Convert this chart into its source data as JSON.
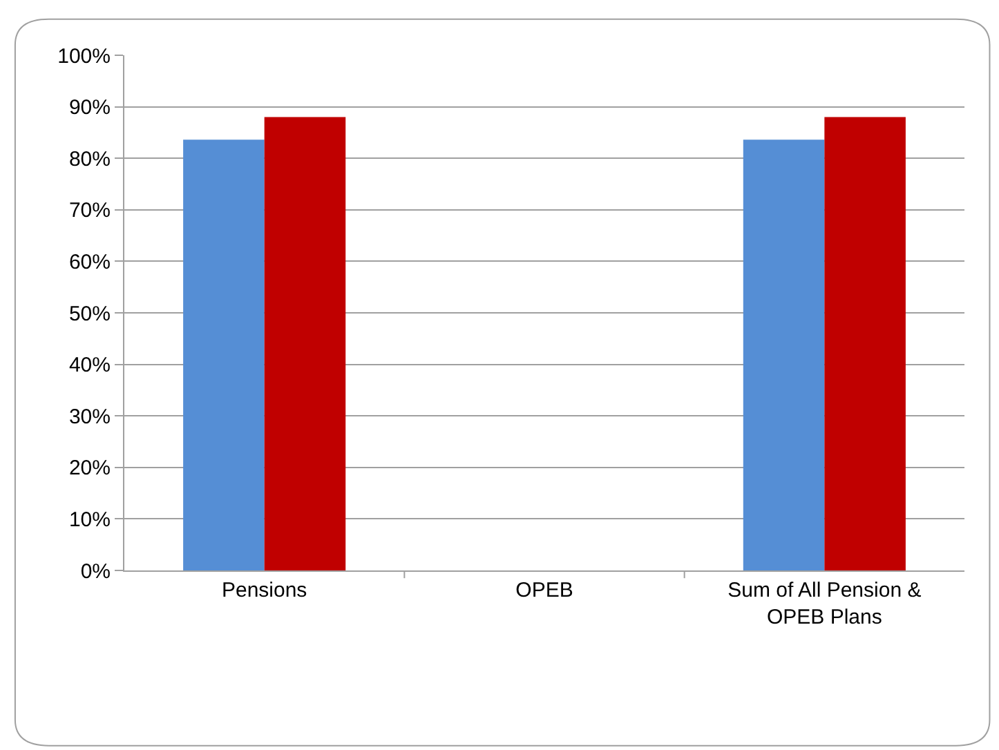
{
  "chart_data": {
    "type": "bar",
    "categories": [
      "Pensions",
      "OPEB",
      "Sum of All Pension & OPEB Plans"
    ],
    "series": [
      {
        "color": "#558ed5",
        "values": [
          83.6,
          null,
          83.6
        ]
      },
      {
        "color": "#c00000",
        "values": [
          88.0,
          null,
          88.0
        ]
      }
    ],
    "ylim": [
      0,
      100
    ],
    "yticks": [
      {
        "value": 0,
        "label": "0%"
      },
      {
        "value": 10,
        "label": "10%"
      },
      {
        "value": 20,
        "label": "20%"
      },
      {
        "value": 30,
        "label": "30%"
      },
      {
        "value": 40,
        "label": "40%"
      },
      {
        "value": 50,
        "label": "50%"
      },
      {
        "value": 60,
        "label": "60%"
      },
      {
        "value": 70,
        "label": "70%"
      },
      {
        "value": 80,
        "label": "80%"
      },
      {
        "value": 90,
        "label": "90%"
      },
      {
        "value": 100,
        "label": "100%"
      }
    ],
    "grid": "y"
  }
}
